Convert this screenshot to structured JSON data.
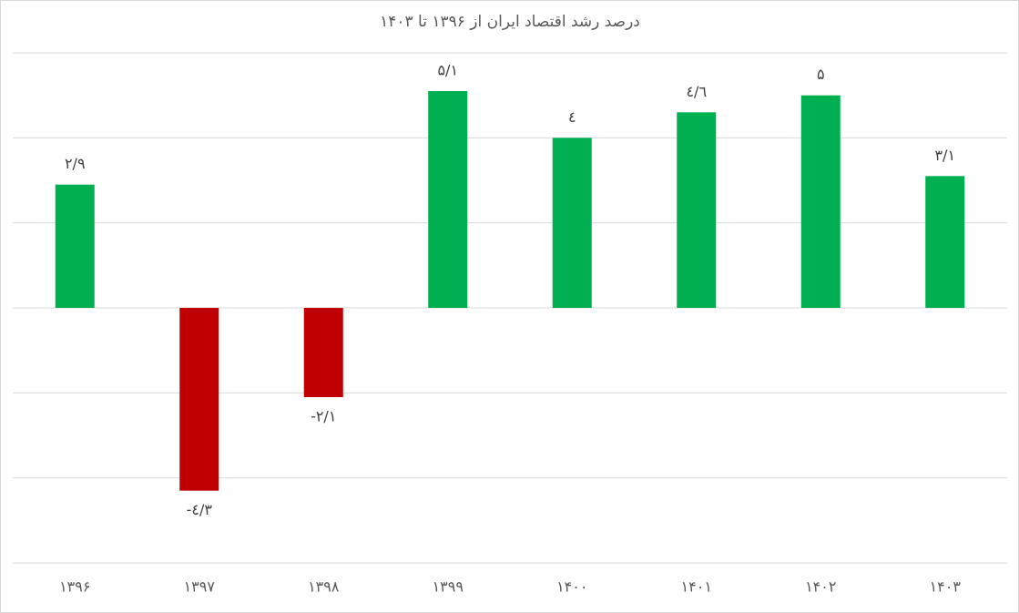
{
  "chart_data": {
    "type": "bar",
    "title": "درصد رشد اقتصاد ایران از ۱۳۹۶ تا ۱۴۰۳",
    "categories": [
      "۱۳۹۶",
      "۱۳۹۷",
      "۱۳۹۸",
      "۱۳۹۹",
      "۱۴۰۰",
      "۱۴۰۱",
      "۱۴۰۲",
      "۱۴۰۳"
    ],
    "values": [
      2.9,
      -4.3,
      -2.1,
      5.1,
      4,
      4.6,
      5,
      3.1
    ],
    "value_labels": [
      "۲/۹",
      "-٤/٣",
      "-۲/۱",
      "۵/۱",
      "٤",
      "٤/٦",
      "۵",
      "۳/۱"
    ],
    "colors": [
      "#00b050",
      "#c00000",
      "#c00000",
      "#00b050",
      "#00b050",
      "#00b050",
      "#00b050",
      "#00b050"
    ],
    "ylim": [
      -6,
      6
    ],
    "yticks": [
      -6,
      -4,
      -2,
      0,
      2,
      4,
      6
    ],
    "grid": true
  }
}
